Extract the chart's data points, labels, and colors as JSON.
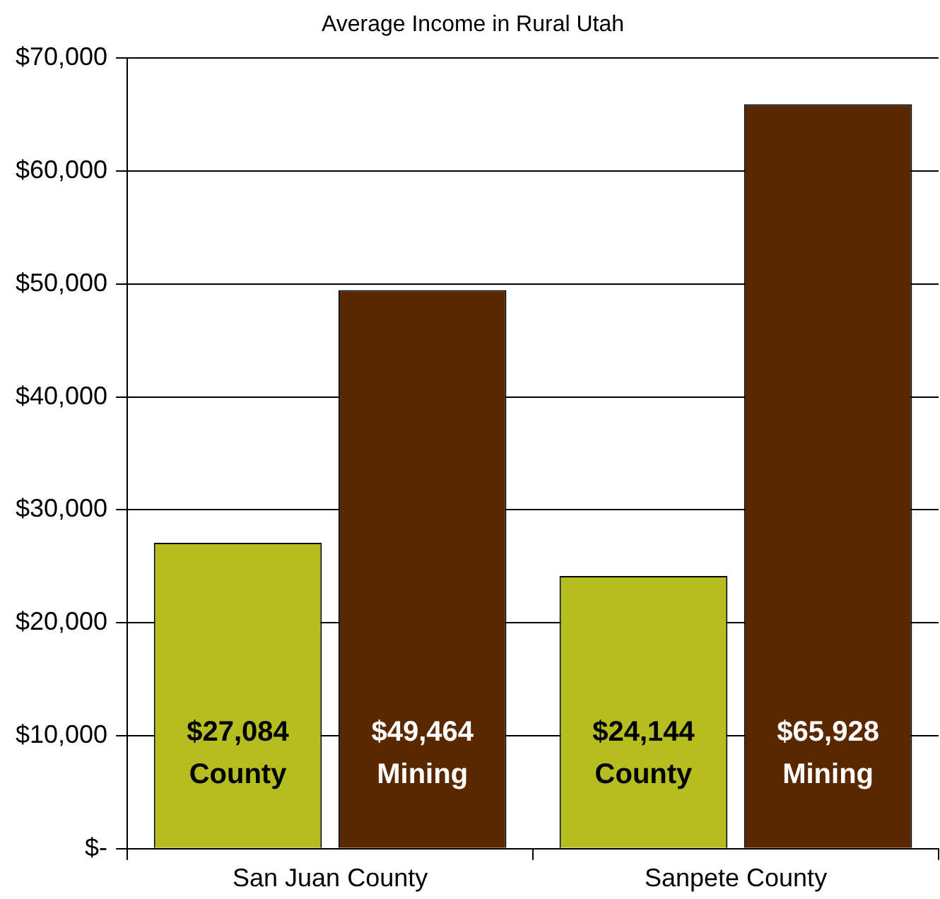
{
  "chart_data": {
    "type": "bar",
    "title": "Average Income in Rural Utah",
    "categories": [
      "San Juan County",
      "Sanpete County"
    ],
    "series": [
      {
        "name": "County",
        "color": "#b5bd1f",
        "values": [
          27084,
          24144
        ],
        "value_labels": [
          "$27,084",
          "$24,144"
        ]
      },
      {
        "name": "Mining",
        "color": "#5a2800",
        "values": [
          49464,
          65928
        ],
        "value_labels": [
          "$49,464",
          "$65,928"
        ]
      }
    ],
    "ylim": [
      0,
      70000
    ],
    "yticks": [
      {
        "value": 0,
        "label": "$-"
      },
      {
        "value": 10000,
        "label": "$10,000"
      },
      {
        "value": 20000,
        "label": "$20,000"
      },
      {
        "value": 30000,
        "label": "$30,000"
      },
      {
        "value": 40000,
        "label": "$40,000"
      },
      {
        "value": 50000,
        "label": "$50,000"
      },
      {
        "value": 60000,
        "label": "$60,000"
      },
      {
        "value": 70000,
        "label": "$70,000"
      }
    ],
    "grid": "y",
    "legend": false
  }
}
